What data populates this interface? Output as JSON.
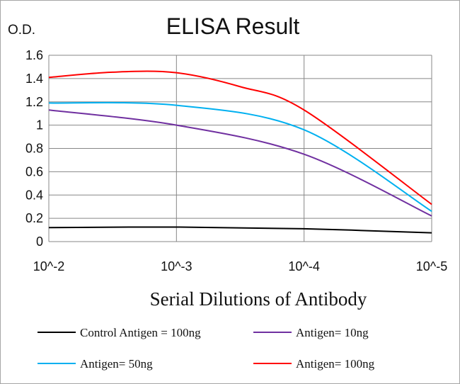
{
  "chart_data": {
    "type": "line",
    "title": "ELISA Result",
    "ylabel": "O.D.",
    "xlabel": "Serial Dilutions  of Antibody",
    "categories": [
      "10^-2",
      "10^-3",
      "10^-4",
      "10^-5"
    ],
    "x": [
      -2,
      -3,
      -4,
      -5
    ],
    "ylim": [
      0,
      1.6
    ],
    "y_ticks": [
      "0",
      "0.2",
      "0.4",
      "0.6",
      "0.8",
      "1",
      "1.2",
      "1.4",
      "1.6"
    ],
    "grid": true,
    "legend_position": "bottom",
    "series": [
      {
        "name": "Control Antigen = 100ng",
        "color": "#000000",
        "x": [
          -2,
          -3,
          -4,
          -5
        ],
        "values": [
          0.12,
          0.125,
          0.11,
          0.075
        ]
      },
      {
        "name": "Antigen= 10ng",
        "color": "#7030a0",
        "x": [
          -2,
          -3,
          -4,
          -5
        ],
        "values": [
          1.13,
          1.0,
          0.75,
          0.22
        ]
      },
      {
        "name": "Antigen= 50ng",
        "color": "#00b0f0",
        "x": [
          -2,
          -3,
          -4,
          -5
        ],
        "values": [
          1.19,
          1.17,
          0.96,
          0.26
        ]
      },
      {
        "name": "Antigen= 100ng",
        "color": "#ff0000",
        "x": [
          -2,
          -2.5,
          -3,
          -3.5,
          -4,
          -5
        ],
        "values": [
          1.41,
          1.455,
          1.45,
          1.33,
          1.13,
          0.32
        ]
      }
    ]
  }
}
